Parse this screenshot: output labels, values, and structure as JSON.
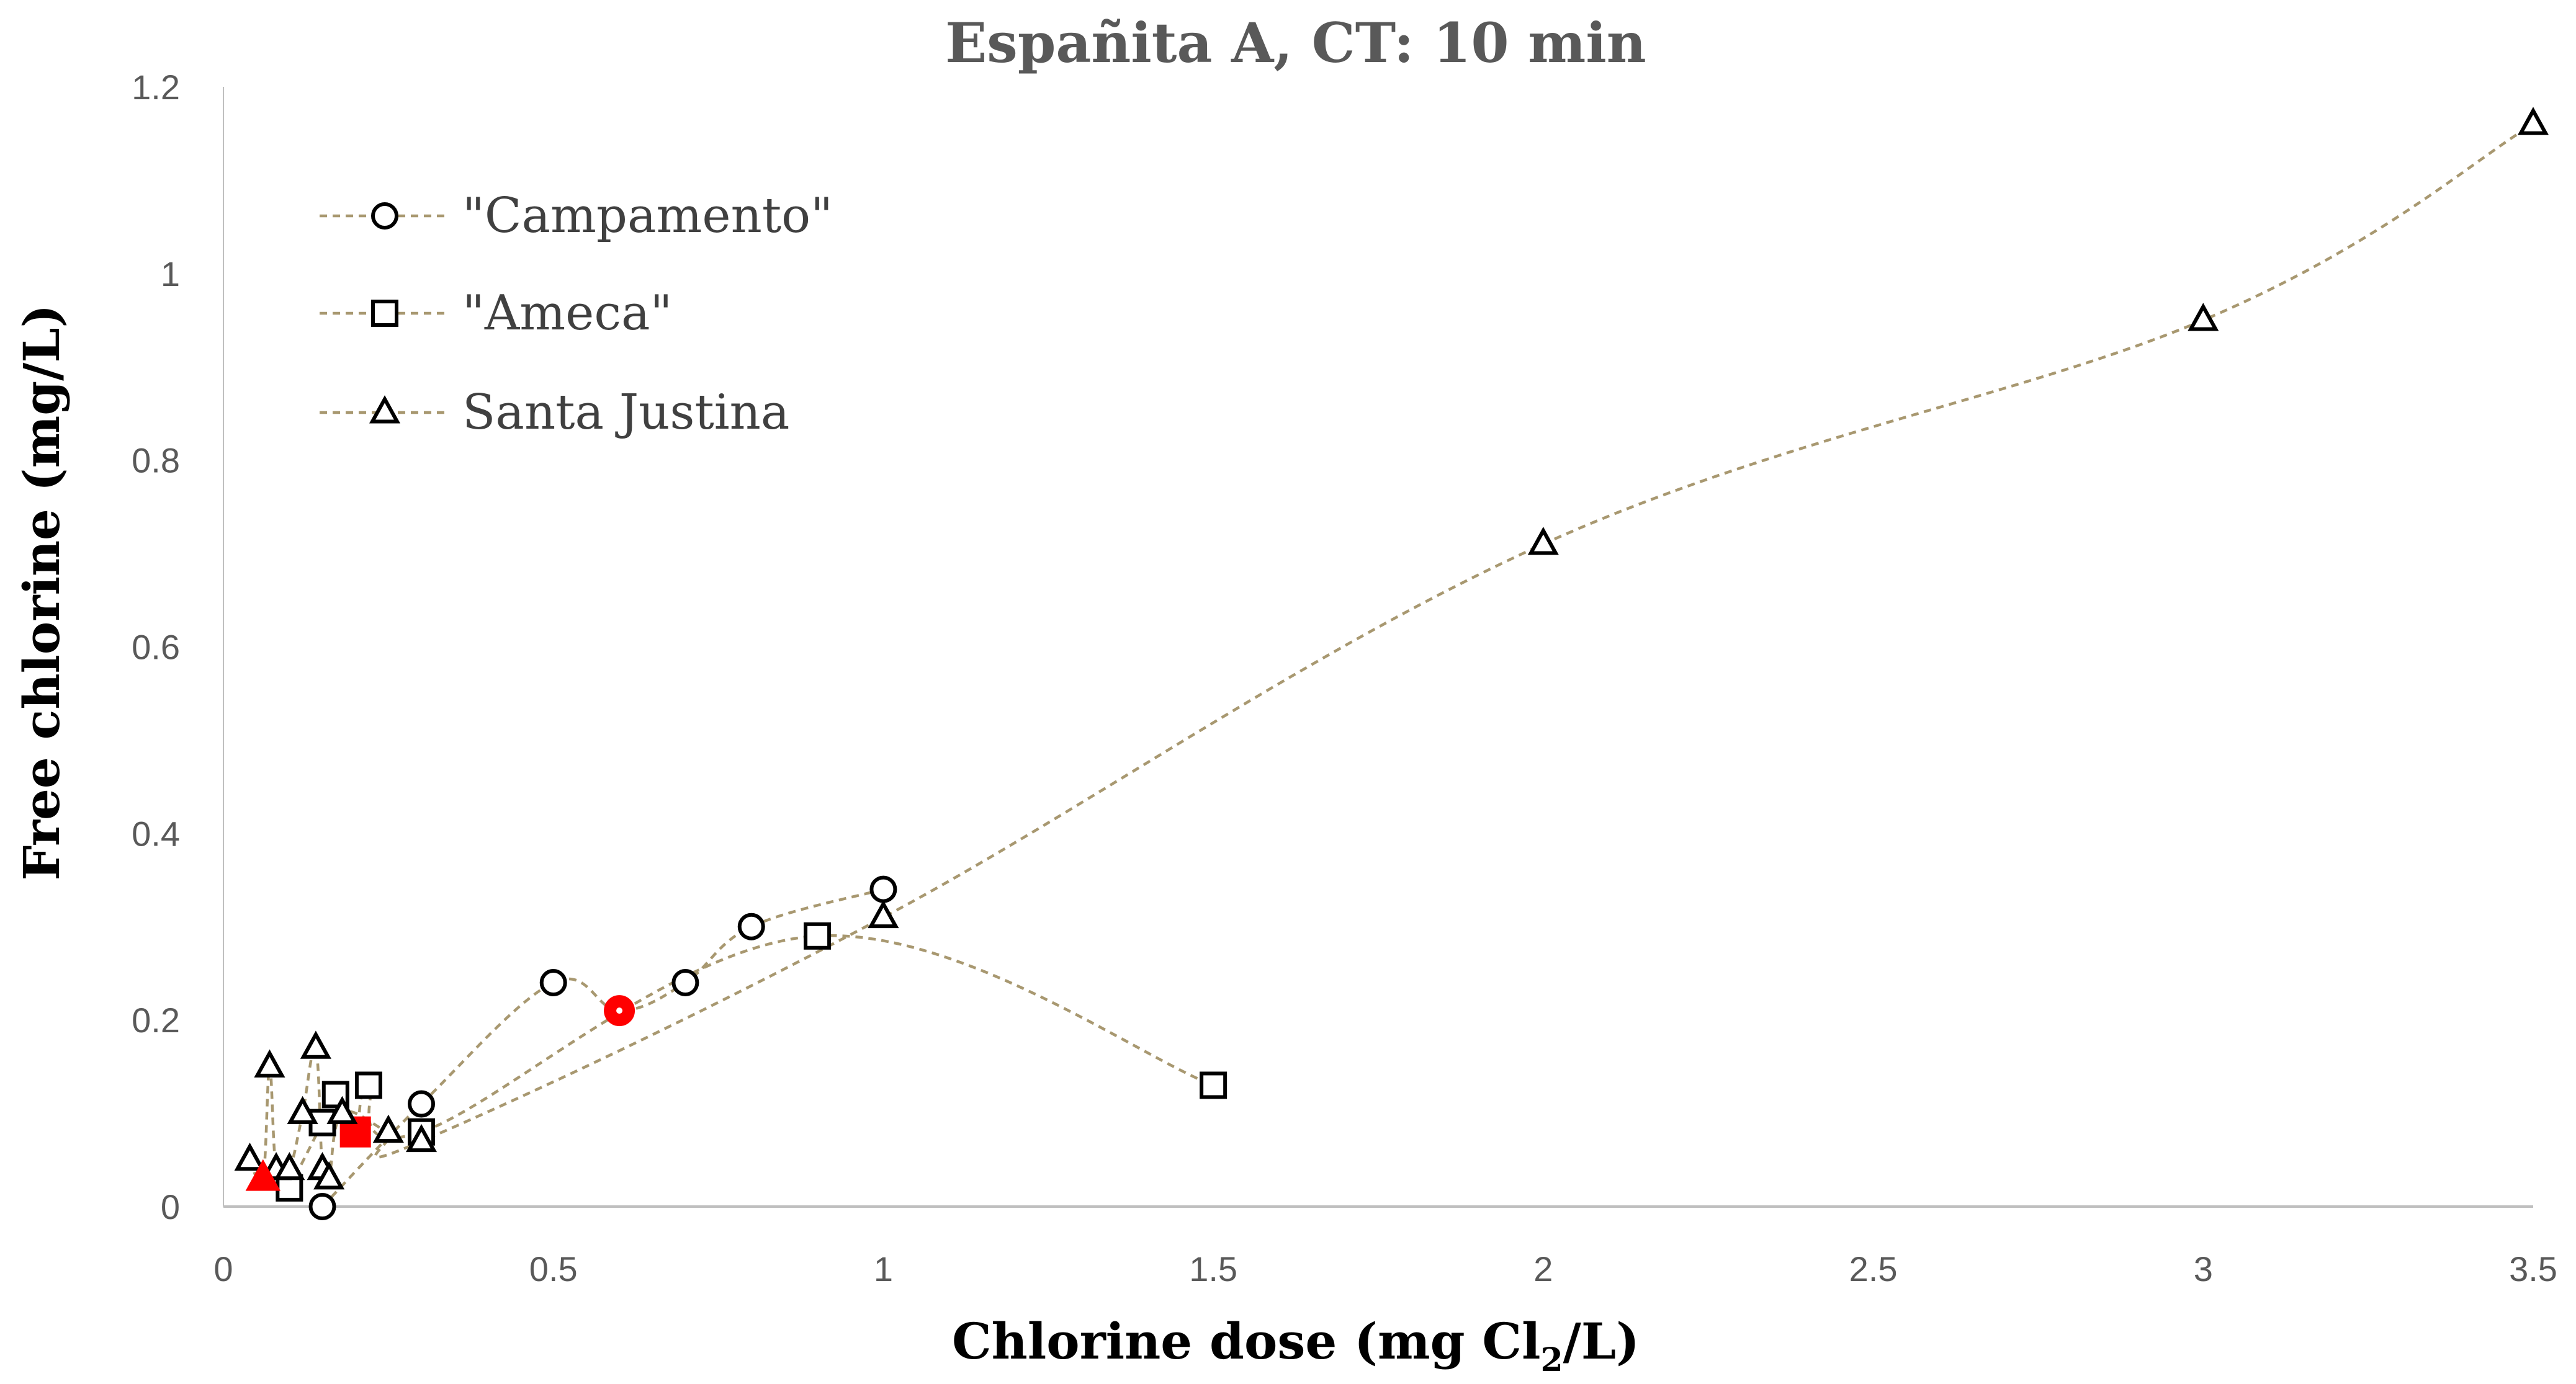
{
  "chart_data": {
    "type": "scatter",
    "title": "Españita A, CT: 10 min",
    "xlabel": "Chlorine dose (mg Cl",
    "xlabel_sub": "2",
    "xlabel_end": "/L)",
    "ylabel": "Free chlorine (mg/L)",
    "xlim": [
      0,
      3.5
    ],
    "ylim": [
      0,
      1.2
    ],
    "x_ticks": [
      0,
      0.5,
      1,
      1.5,
      2,
      2.5,
      3,
      3.5
    ],
    "x_tick_labels": [
      "0",
      "0.5",
      "1",
      "1.5",
      "2",
      "2.5",
      "3",
      "3.5"
    ],
    "y_ticks": [
      0,
      0.2,
      0.4,
      0.6,
      0.8,
      1,
      1.2
    ],
    "y_tick_labels": [
      "0",
      "0.2",
      "0.4",
      "0.6",
      "0.8",
      "1",
      "1.2"
    ],
    "grid": false,
    "legend_position": "top-left",
    "line_color": "#a89870",
    "highlight_color": "#ff0000",
    "series": [
      {
        "name": "\"Campamento\"",
        "marker": "circle",
        "points": [
          [
            0.15,
            0.0
          ],
          [
            0.3,
            0.11
          ],
          [
            0.5,
            0.24
          ],
          [
            0.6,
            0.21
          ],
          [
            0.7,
            0.24
          ],
          [
            0.8,
            0.3
          ],
          [
            1.0,
            0.34
          ]
        ],
        "highlight": [
          [
            0.6,
            0.21
          ]
        ]
      },
      {
        "name": "\"Ameca\"",
        "marker": "square",
        "points": [
          [
            0.1,
            0.02
          ],
          [
            0.15,
            0.09
          ],
          [
            0.17,
            0.12
          ],
          [
            0.2,
            0.08
          ],
          [
            0.22,
            0.13
          ],
          [
            0.3,
            0.08
          ],
          [
            0.9,
            0.29
          ],
          [
            1.5,
            0.13
          ]
        ],
        "highlight": [
          [
            0.2,
            0.08
          ]
        ]
      },
      {
        "name": "Santa Justina",
        "marker": "triangle",
        "points": [
          [
            0.04,
            0.05
          ],
          [
            0.06,
            0.03
          ],
          [
            0.07,
            0.15
          ],
          [
            0.08,
            0.04
          ],
          [
            0.1,
            0.04
          ],
          [
            0.12,
            0.1
          ],
          [
            0.14,
            0.17
          ],
          [
            0.15,
            0.04
          ],
          [
            0.16,
            0.03
          ],
          [
            0.18,
            0.1
          ],
          [
            0.25,
            0.08
          ],
          [
            0.3,
            0.07
          ],
          [
            1.0,
            0.31
          ],
          [
            2.0,
            0.71
          ],
          [
            3.0,
            0.95
          ],
          [
            3.5,
            1.16
          ]
        ],
        "highlight": [
          [
            0.06,
            0.03
          ]
        ]
      }
    ]
  }
}
